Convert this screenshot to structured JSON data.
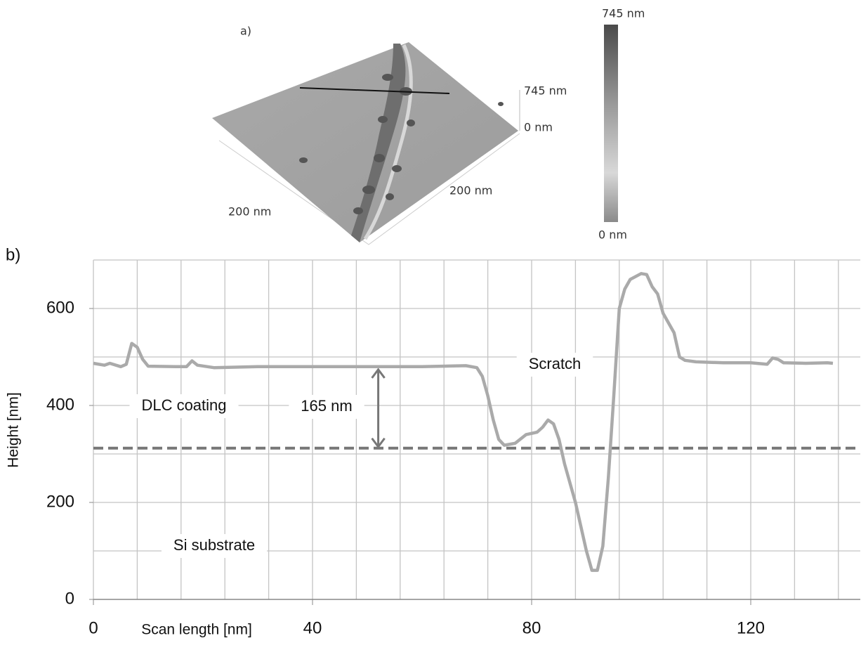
{
  "panel_a": {
    "label": "a)",
    "z_max": "745 nm",
    "z_min": "0 nm",
    "x_axis": "200 nm",
    "y_axis": "200 nm",
    "colorbar_max": "745 nm",
    "colorbar_min": "0 nm"
  },
  "chart_data": {
    "type": "line",
    "panel_label": "b)",
    "xlabel": "Scan length [nm]",
    "ylabel": "Height [nm]",
    "x": [
      0,
      2,
      3,
      5,
      6,
      7,
      8,
      9,
      10,
      15,
      17,
      18,
      19,
      22,
      30,
      40,
      60,
      68,
      70,
      71,
      72,
      73,
      74,
      75,
      77,
      79,
      81,
      82,
      83,
      84,
      85,
      86,
      88,
      89,
      90,
      91,
      92,
      93,
      94,
      95,
      96,
      97,
      98,
      100,
      101,
      102,
      103,
      104,
      106,
      107,
      108,
      110,
      115,
      120,
      123,
      124,
      125,
      126,
      130,
      134,
      135
    ],
    "values": [
      487,
      483,
      487,
      480,
      485,
      528,
      520,
      495,
      481,
      480,
      480,
      492,
      483,
      478,
      480,
      480,
      480,
      482,
      478,
      460,
      420,
      370,
      330,
      318,
      322,
      340,
      345,
      355,
      370,
      362,
      330,
      280,
      200,
      150,
      100,
      60,
      60,
      110,
      250,
      420,
      600,
      640,
      660,
      672,
      670,
      645,
      630,
      590,
      550,
      500,
      493,
      490,
      488,
      488,
      485,
      498,
      495,
      488,
      487,
      488,
      487
    ],
    "color": "#aaaaaa",
    "xlim": [
      0,
      140
    ],
    "ylim": [
      0,
      700
    ],
    "xticks": [
      0,
      40,
      80,
      120
    ],
    "yticks": [
      0,
      200,
      400,
      600
    ],
    "x_grid": [
      0,
      8,
      16,
      24,
      32,
      40,
      48,
      56,
      64,
      72,
      80,
      88,
      96,
      104,
      112,
      120,
      128,
      136
    ],
    "y_grid": [
      100,
      200,
      300,
      400,
      500,
      600,
      700
    ],
    "grid": true,
    "reference_line": {
      "value": 312,
      "color": "#777777"
    },
    "thickness_arrow": {
      "x": 52,
      "top": 477,
      "bottom": 312
    },
    "annotations": [
      "DLC coating",
      "165 nm",
      "Scratch",
      "Si substrate"
    ]
  }
}
